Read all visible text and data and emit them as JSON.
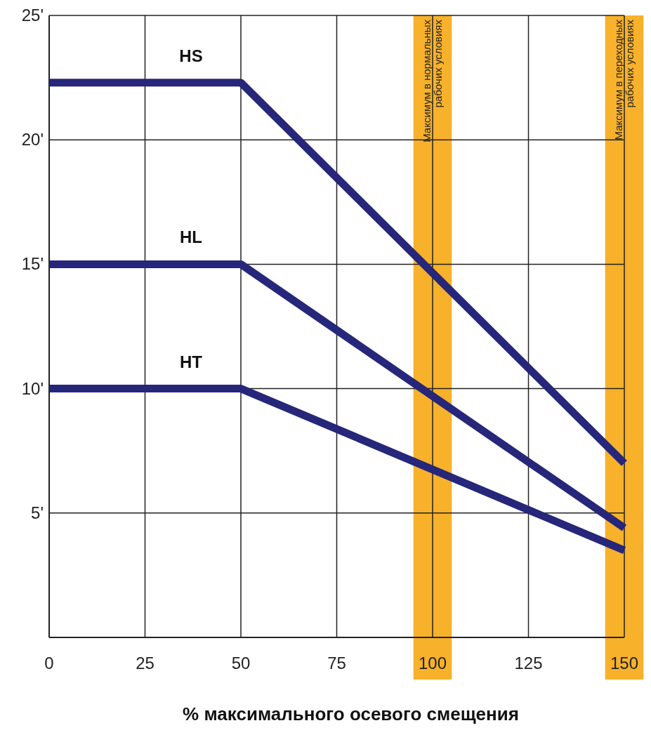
{
  "chart_data": {
    "type": "line",
    "xlabel": "% максимального осевого смещения",
    "x": [
      0,
      50,
      150
    ],
    "series": [
      {
        "name": "HS",
        "color": "#26267a",
        "values": [
          22.3,
          22.3,
          7
        ]
      },
      {
        "name": "HL",
        "color": "#26267a",
        "values": [
          15,
          15,
          4.4
        ]
      },
      {
        "name": "HT",
        "color": "#26267a",
        "values": [
          10,
          10,
          3.5
        ]
      }
    ],
    "xlim": [
      0,
      150
    ],
    "xticks": [
      0,
      25,
      50,
      75,
      100,
      125,
      150
    ],
    "ylim": [
      0,
      25
    ],
    "yticks": [
      {
        "value": 5,
        "label": "5'"
      },
      {
        "value": 10,
        "label": "10'"
      },
      {
        "value": 15,
        "label": "15'"
      },
      {
        "value": 20,
        "label": "20'"
      },
      {
        "value": 25,
        "label": "25'"
      }
    ],
    "bands": [
      {
        "axis": "x",
        "from": 95,
        "to": 105,
        "label": "Максимум в нормальных\nрабочих условиях",
        "color": "#f7b12a"
      },
      {
        "axis": "x",
        "from": 145,
        "to": 155,
        "label": "Максимум в переходных\nрабочих условиях",
        "color": "#f7b12a"
      }
    ],
    "grid": true,
    "marker": "none",
    "line_style": "solid"
  }
}
